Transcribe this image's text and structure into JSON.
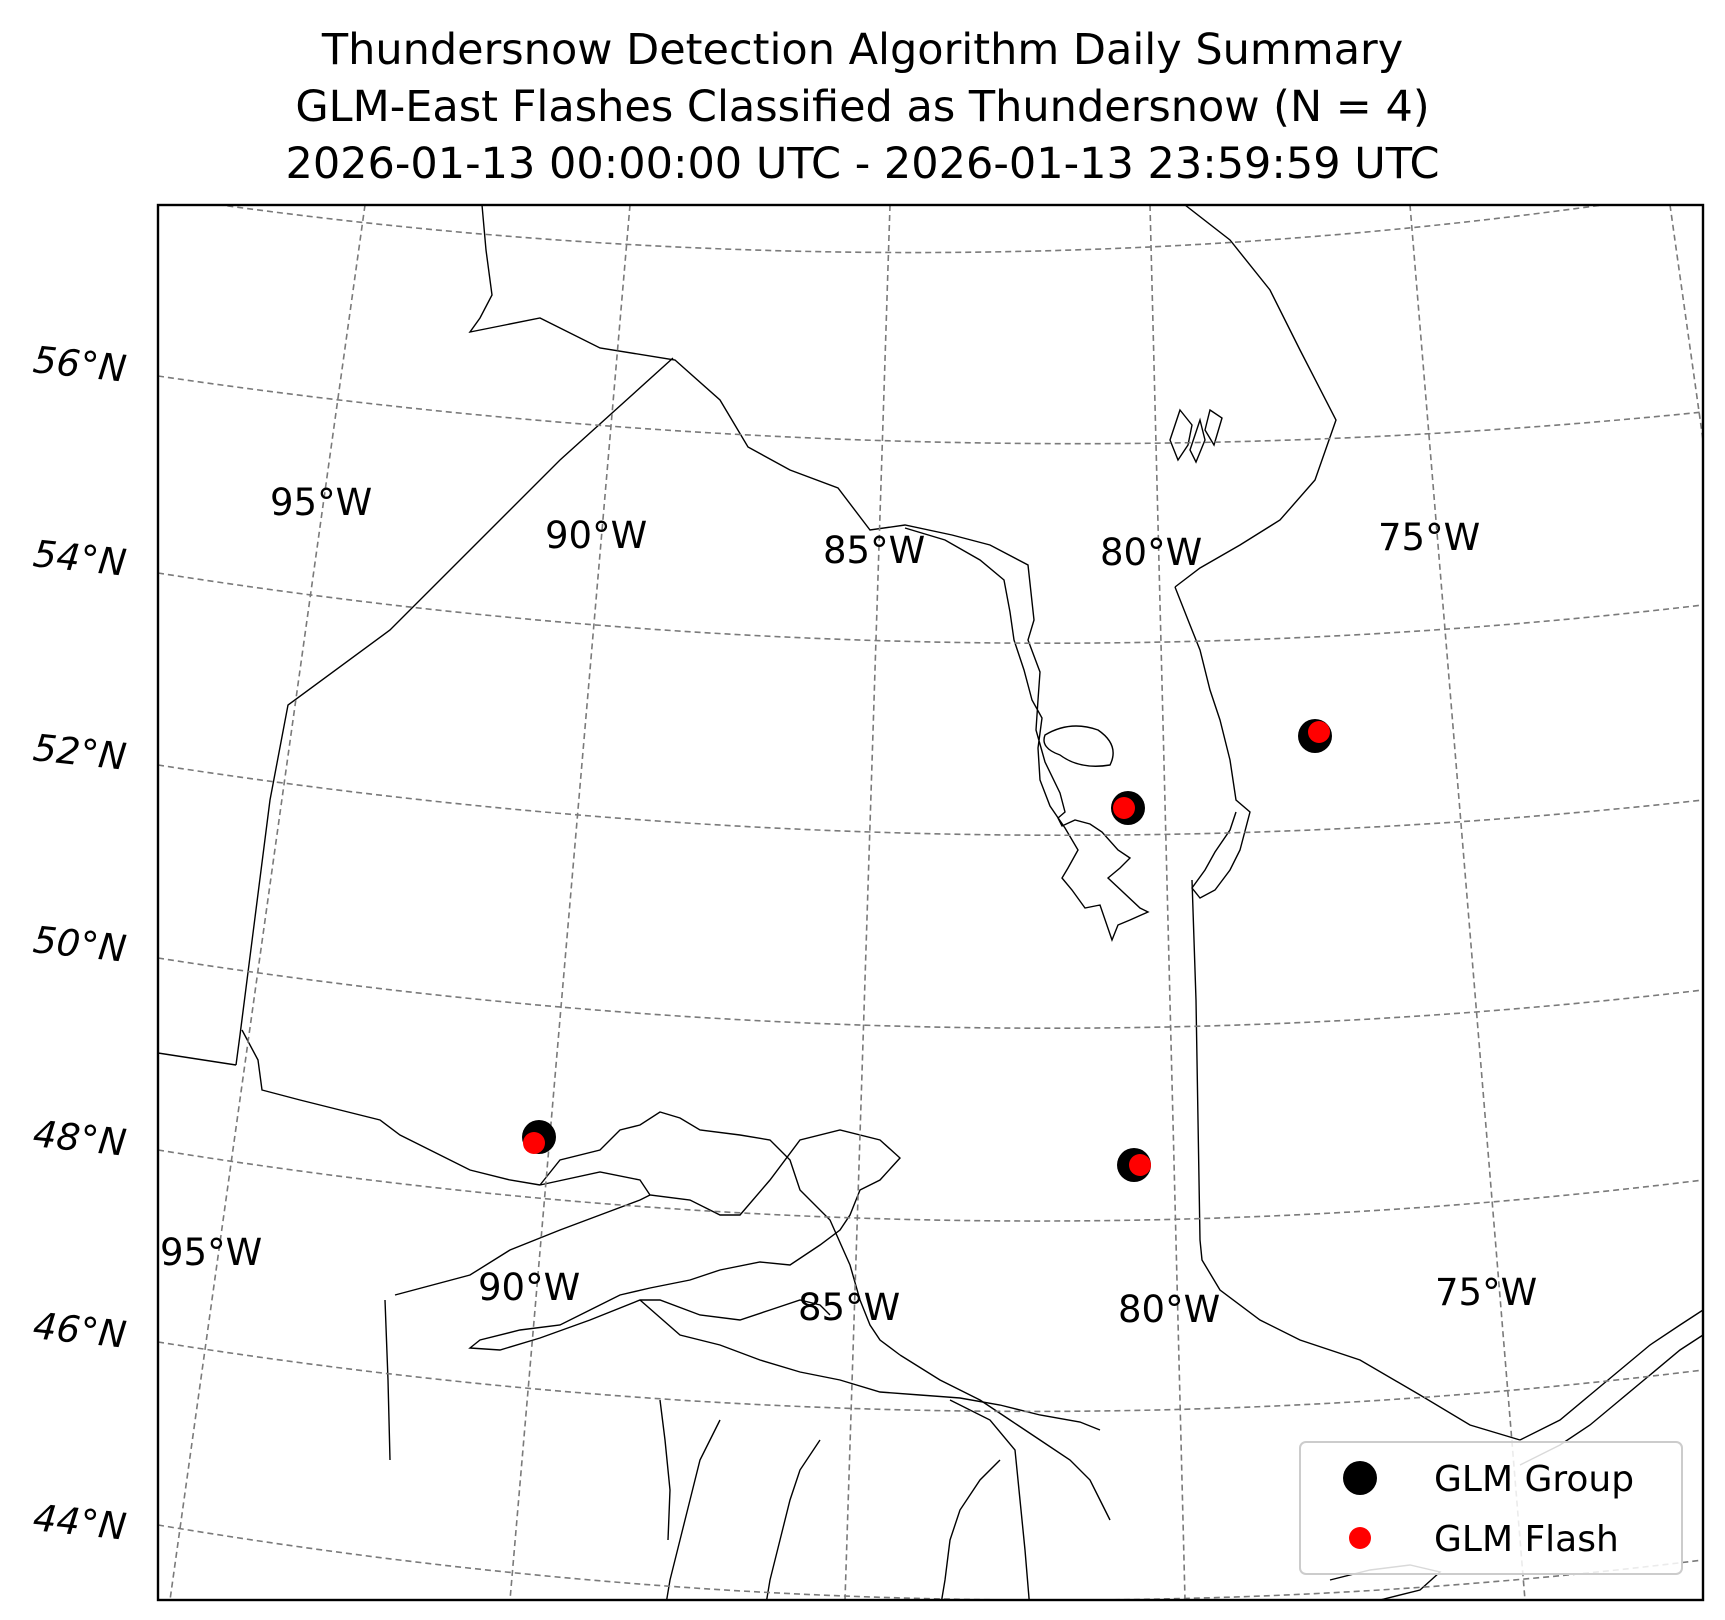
{
  "title": {
    "line1": "Thundersnow Detection Algorithm Daily Summary",
    "line2": "GLM-East Flashes Classified as Thundersnow (N = 4)",
    "line3": "2026-01-13 00:00:00 UTC - 2026-01-13 23:59:59 UTC"
  },
  "gridlines": {
    "latitudes": [
      "56°N",
      "54°N",
      "52°N",
      "50°N",
      "48°N",
      "46°N",
      "44°N"
    ],
    "longitudes_top": [
      "95°W",
      "90°W",
      "85°W",
      "80°W",
      "75°W"
    ],
    "longitudes_bottom": [
      "95°W",
      "90°W",
      "85°W",
      "80°W",
      "75°W"
    ]
  },
  "legend": {
    "group_label": "GLM Group",
    "flash_label": "GLM Flash",
    "group_color": "#000000",
    "flash_color": "#ff0000"
  },
  "detections": [
    {
      "lat": 52.5,
      "lon": -76.3
    },
    {
      "lat": 51.7,
      "lon": -80.9
    },
    {
      "lat": 48.2,
      "lon": -89.5
    },
    {
      "lat": 48.0,
      "lon": -80.4
    }
  ]
}
